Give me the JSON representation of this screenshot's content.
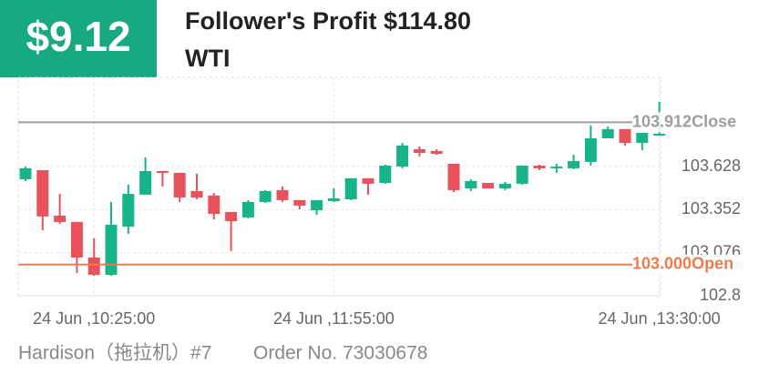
{
  "header": {
    "badge": "$9.12",
    "title": "Follower's Profit $114.80",
    "subtitle": "WTI"
  },
  "footer": {
    "trader": "Hardison（拖拉机）#7",
    "order": "Order No. 73030678"
  },
  "chart_data": {
    "type": "candlestick",
    "categories": [
      null,
      null,
      null,
      null,
      "24 Jun ,10:25:00",
      null,
      null,
      null,
      null,
      null,
      null,
      null,
      null,
      null,
      null,
      null,
      null,
      null,
      "24 Jun ,11:55:00",
      null,
      null,
      null,
      null,
      null,
      null,
      null,
      null,
      null,
      null,
      null,
      null,
      null,
      null,
      null,
      null,
      null,
      null,
      "24 Jun ,13:30:00"
    ],
    "open": [
      103.547,
      103.605,
      103.313,
      103.273,
      103.045,
      102.934,
      103.243,
      103.448,
      103.599,
      103.588,
      103.471,
      103.442,
      103.337,
      103.302,
      103.401,
      103.477,
      103.413,
      103.348,
      103.407,
      103.418,
      103.553,
      103.523,
      103.628,
      103.739,
      103.728,
      103.646,
      103.488,
      103.523,
      103.488,
      103.518,
      103.634,
      103.617,
      103.617,
      103.658,
      103.809,
      103.868,
      103.78,
      103.833
    ],
    "high": [
      103.628,
      103.605,
      103.453,
      103.273,
      103.168,
      103.401,
      103.512,
      103.687,
      103.599,
      103.588,
      103.582,
      103.459,
      103.337,
      103.413,
      103.477,
      103.5,
      103.413,
      103.413,
      103.488,
      103.553,
      103.553,
      103.64,
      103.78,
      103.757,
      103.739,
      103.646,
      103.547,
      103.523,
      103.529,
      103.634,
      103.64,
      103.646,
      103.704,
      103.891,
      103.885,
      103.868,
      103.844,
      104.043
    ],
    "low": [
      103.535,
      103.22,
      103.261,
      102.946,
      102.928,
      102.928,
      103.197,
      103.448,
      103.5,
      103.401,
      103.418,
      103.29,
      103.086,
      103.296,
      103.395,
      103.401,
      103.354,
      103.319,
      103.401,
      103.413,
      103.448,
      103.518,
      103.617,
      103.693,
      103.704,
      103.465,
      103.471,
      103.488,
      103.477,
      103.512,
      103.605,
      103.588,
      103.611,
      103.634,
      103.809,
      103.763,
      103.733,
      103.833
    ],
    "close": [
      103.617,
      103.308,
      103.273,
      103.045,
      102.934,
      103.255,
      103.453,
      103.599,
      103.588,
      103.43,
      103.43,
      103.325,
      103.278,
      103.401,
      103.471,
      103.413,
      103.378,
      103.413,
      103.424,
      103.553,
      103.518,
      103.634,
      103.763,
      103.716,
      103.71,
      103.477,
      103.535,
      103.488,
      103.518,
      103.634,
      103.617,
      103.628,
      103.663,
      103.809,
      103.868,
      103.78,
      103.844,
      103.838
    ],
    "up_color": "#17b48a",
    "down_color": "#e9515b",
    "ylim": [
      102.8,
      104.2
    ],
    "yticks": [
      102.8,
      103.076,
      103.352,
      103.628
    ],
    "close_line": {
      "value": 103.912,
      "label": "Close",
      "color": "#9e9e9e"
    },
    "open_line": {
      "value": 103.0,
      "label": "Open",
      "color": "#f07c4d"
    }
  }
}
